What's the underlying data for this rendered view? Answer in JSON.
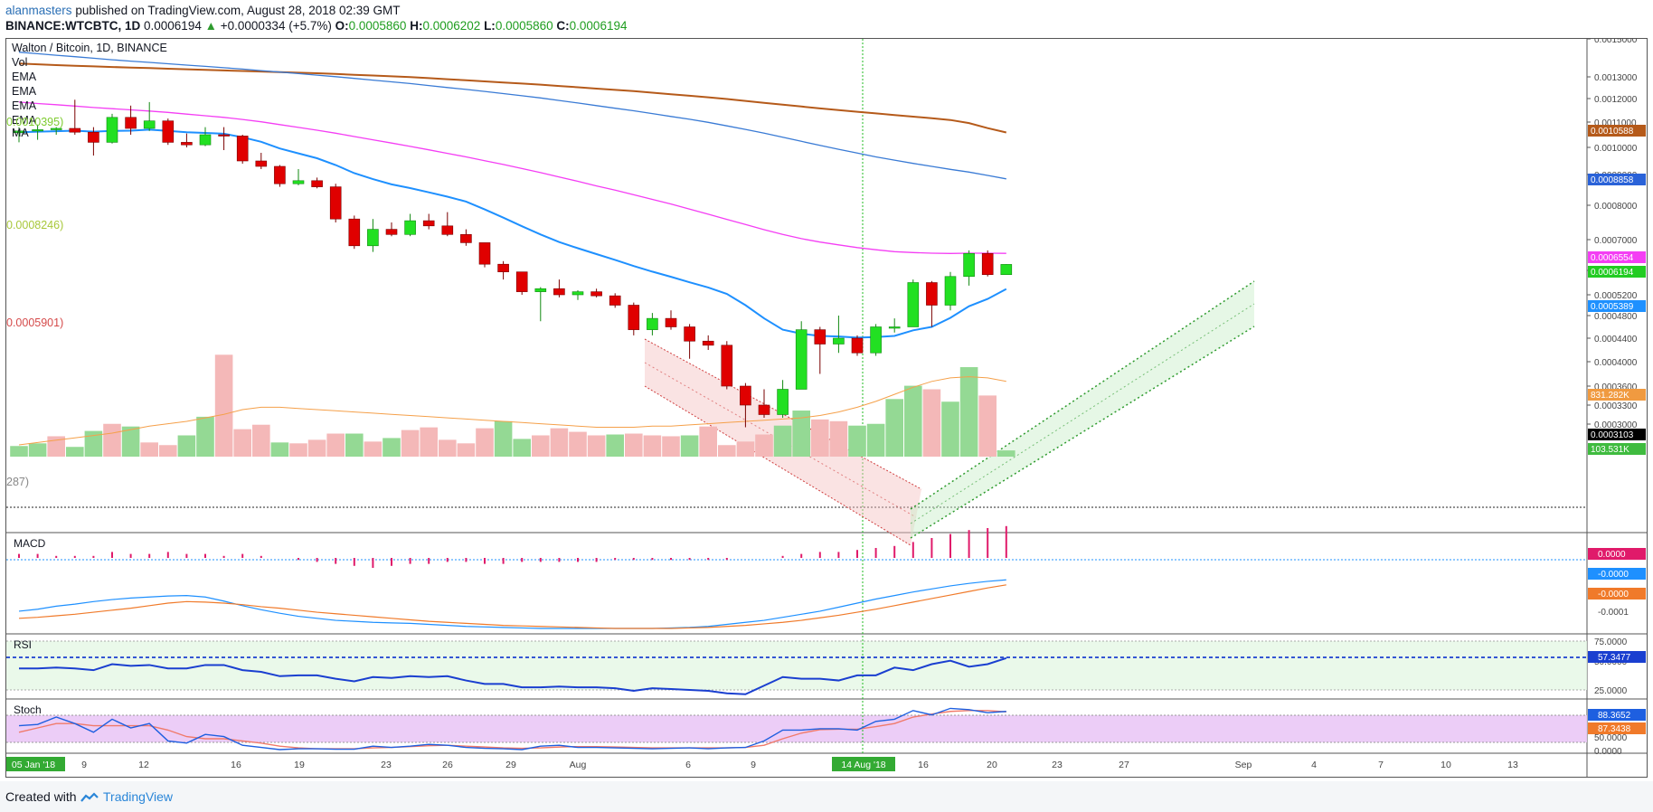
{
  "header": {
    "author": "alanmasters",
    "published_text": "published on TradingView.com, August 28, 2018 02:39 GMT",
    "symbol": "BINANCE:WTCBTC, 1D",
    "last": "0.0006194",
    "change": "+0.0000334 (+5.7%)",
    "o_label": "O:",
    "o_val": "0.0005860",
    "h_label": "H:",
    "h_val": "0.0006202",
    "l_label": "L:",
    "l_val": "0.0005860",
    "c_label": "C:",
    "c_val": "0.0006194"
  },
  "main_title": "Walton / Bitcoin, 1D, BINANCE",
  "legend": [
    "Vol",
    "EMA",
    "EMA",
    "EMA",
    "EMA",
    "MA"
  ],
  "left_cut_labels": [
    {
      "text": "0.0010395)",
      "color": "#7ecb2f"
    },
    {
      "text": "0.0008246)",
      "color": "#a8c83a"
    },
    {
      "text": "0.0005901)",
      "color": "#d54a4a"
    },
    {
      "text": "287)",
      "color": "#888888"
    }
  ],
  "pane_labels": {
    "macd": "MACD",
    "rsi": "RSI",
    "stoch": "Stoch"
  },
  "footer": {
    "created_with": "Created with",
    "brand": "TradingView"
  },
  "colors": {
    "up": "#22e022",
    "down": "#e00000",
    "ema_fast": "#1e90ff",
    "ema_magenta": "#f43ef4",
    "ema_blue": "#3a7bd5",
    "ema_brown": "#b55a1a",
    "vol_up": "#94d994",
    "vol_down": "#f4b8b8"
  },
  "chart_data": {
    "type": "candlestick",
    "title": "Walton / Bitcoin, 1D, BINANCE",
    "y_axis_ticks": [
      "0.0015000",
      "0.0013000",
      "0.0012000",
      "0.0011000",
      "0.0010000",
      "0.0009000",
      "0.0008000",
      "0.0007000",
      "0.0006000",
      "0.0005200",
      "0.0004800",
      "0.0004400",
      "0.0004000",
      "0.0003600",
      "0.0003300",
      "0.0003000"
    ],
    "price_labels": [
      {
        "text": "0.0010588",
        "bg": "#b55a1a",
        "fg": "#ffffff"
      },
      {
        "text": "0.0008858",
        "bg": "#2a62d8",
        "fg": "#ffffff"
      },
      {
        "text": "0.0006554",
        "bg": "#f43ef4",
        "fg": "#ffffff"
      },
      {
        "text": "0.0006194",
        "bg": "#22cc22",
        "fg": "#ffffff"
      },
      {
        "text": "0.0005389",
        "bg": "#1e90ff",
        "fg": "#ffffff"
      },
      {
        "text": "831.282K",
        "bg": "#f09a40",
        "fg": "#ffffff"
      },
      {
        "text": "0.0003103",
        "bg": "#000000",
        "fg": "#ffffff"
      },
      {
        "text": "103.531K",
        "bg": "#3fbb3f",
        "fg": "#ffffff"
      }
    ],
    "candles": [
      [
        0.001058,
        0.00108,
        0.00102,
        0.001065
      ],
      [
        0.001065,
        0.00109,
        0.00103,
        0.00107
      ],
      [
        0.00107,
        0.00108,
        0.00105,
        0.001075
      ],
      [
        0.001075,
        0.001195,
        0.00105,
        0.00106
      ],
      [
        0.00106,
        0.00108,
        0.00097,
        0.00102
      ],
      [
        0.00102,
        0.001135,
        0.001015,
        0.00112
      ],
      [
        0.00112,
        0.00117,
        0.00105,
        0.001075
      ],
      [
        0.001075,
        0.001185,
        0.001065,
        0.001105
      ],
      [
        0.001105,
        0.001115,
        0.00101,
        0.00102
      ],
      [
        0.00102,
        0.001055,
        0.001,
        0.00101
      ],
      [
        0.00101,
        0.00108,
        0.001005,
        0.00105
      ],
      [
        0.00105,
        0.00108,
        0.00099,
        0.001045
      ],
      [
        0.001045,
        0.00105,
        0.00094,
        0.00095
      ],
      [
        0.00095,
        0.00098,
        0.00092,
        0.00093
      ],
      [
        0.00093,
        0.000935,
        0.00086,
        0.00087
      ],
      [
        0.00087,
        0.00092,
        0.000865,
        0.00088
      ],
      [
        0.00088,
        0.00089,
        0.000855,
        0.00086
      ],
      [
        0.00086,
        0.00087,
        0.00075,
        0.00076
      ],
      [
        0.00076,
        0.00077,
        0.00067,
        0.00068
      ],
      [
        0.00068,
        0.00076,
        0.00066,
        0.00073
      ],
      [
        0.00073,
        0.00075,
        0.00071,
        0.000715
      ],
      [
        0.000715,
        0.000775,
        0.00071,
        0.000755
      ],
      [
        0.000755,
        0.000775,
        0.00073,
        0.00074
      ],
      [
        0.00074,
        0.00078,
        0.00071,
        0.000715
      ],
      [
        0.000715,
        0.00073,
        0.00068,
        0.00069
      ],
      [
        0.00069,
        0.00069,
        0.00061,
        0.00062
      ],
      [
        0.00062,
        0.00063,
        0.00057,
        0.000595
      ],
      [
        0.000595,
        0.000595,
        0.00052,
        0.00053
      ],
      [
        0.00053,
        0.000545,
        0.00047,
        0.00054
      ],
      [
        0.00054,
        0.00057,
        0.000515,
        0.00052
      ],
      [
        0.00052,
        0.000535,
        0.00051,
        0.00053
      ],
      [
        0.00053,
        0.00054,
        0.000515,
        0.000518
      ],
      [
        0.000518,
        0.000525,
        0.000495,
        0.0005
      ],
      [
        0.0005,
        0.000505,
        0.000445,
        0.000455
      ],
      [
        0.000455,
        0.000485,
        0.000445,
        0.000475
      ],
      [
        0.000475,
        0.00049,
        0.000455,
        0.00046
      ],
      [
        0.00046,
        0.000465,
        0.000405,
        0.000435
      ],
      [
        0.000435,
        0.000445,
        0.00042,
        0.000428
      ],
      [
        0.000428,
        0.000435,
        0.000355,
        0.00036
      ],
      [
        0.00036,
        0.000365,
        0.000295,
        0.00033
      ],
      [
        0.00033,
        0.000355,
        0.00031,
        0.000315
      ],
      [
        0.000315,
        0.00037,
        0.00031,
        0.000355
      ],
      [
        0.000355,
        0.00047,
        0.000355,
        0.000455
      ],
      [
        0.000455,
        0.00046,
        0.00038,
        0.00043
      ],
      [
        0.00043,
        0.00048,
        0.000415,
        0.00044
      ],
      [
        0.00044,
        0.000445,
        0.00041,
        0.000415
      ],
      [
        0.000415,
        0.000465,
        0.00041,
        0.00046
      ],
      [
        0.00046,
        0.000475,
        0.00045,
        0.00046
      ],
      [
        0.00046,
        0.00057,
        0.00046,
        0.00056
      ],
      [
        0.00056,
        0.000565,
        0.00046,
        0.0005
      ],
      [
        0.0005,
        0.000595,
        0.00049,
        0.00058
      ],
      [
        0.00058,
        0.000665,
        0.00055,
        0.000655
      ],
      [
        0.000655,
        0.000665,
        0.00058,
        0.000586
      ],
      [
        0.000586,
        0.0006202,
        0.000586,
        0.0006194
      ]
    ],
    "volume": [
      [
        120,
        1
      ],
      [
        150,
        1
      ],
      [
        230,
        0
      ],
      [
        110,
        1
      ],
      [
        290,
        1
      ],
      [
        370,
        0
      ],
      [
        340,
        1
      ],
      [
        160,
        0
      ],
      [
        130,
        0
      ],
      [
        240,
        1
      ],
      [
        450,
        1
      ],
      [
        1150,
        0
      ],
      [
        310,
        0
      ],
      [
        360,
        0
      ],
      [
        160,
        1
      ],
      [
        150,
        0
      ],
      [
        190,
        0
      ],
      [
        260,
        0
      ],
      [
        260,
        1
      ],
      [
        170,
        0
      ],
      [
        210,
        1
      ],
      [
        300,
        0
      ],
      [
        330,
        0
      ],
      [
        190,
        0
      ],
      [
        150,
        0
      ],
      [
        320,
        0
      ],
      [
        400,
        1
      ],
      [
        200,
        1
      ],
      [
        240,
        0
      ],
      [
        320,
        0
      ],
      [
        280,
        0
      ],
      [
        240,
        0
      ],
      [
        250,
        1
      ],
      [
        260,
        0
      ],
      [
        240,
        0
      ],
      [
        230,
        0
      ],
      [
        240,
        1
      ],
      [
        340,
        0
      ],
      [
        130,
        0
      ],
      [
        170,
        0
      ],
      [
        250,
        0
      ],
      [
        350,
        1
      ],
      [
        520,
        1
      ],
      [
        420,
        0
      ],
      [
        400,
        0
      ],
      [
        350,
        1
      ],
      [
        370,
        1
      ],
      [
        650,
        1
      ],
      [
        800,
        1
      ],
      [
        760,
        0
      ],
      [
        620,
        1
      ],
      [
        1010,
        1
      ],
      [
        690,
        0
      ],
      [
        70,
        1
      ]
    ],
    "volume_ma": [
      0.1,
      0.12,
      0.14,
      0.16,
      0.18,
      0.2,
      0.23,
      0.26,
      0.28,
      0.3,
      0.33,
      0.36,
      0.4,
      0.42,
      0.42,
      0.41,
      0.4,
      0.39,
      0.38,
      0.37,
      0.36,
      0.35,
      0.34,
      0.33,
      0.32,
      0.31,
      0.3,
      0.29,
      0.28,
      0.27,
      0.26,
      0.25,
      0.25,
      0.25,
      0.26,
      0.26,
      0.27,
      0.28,
      0.29,
      0.3,
      0.31,
      0.32,
      0.33,
      0.35,
      0.38,
      0.42,
      0.47,
      0.53,
      0.59,
      0.64,
      0.67,
      0.68,
      0.67,
      0.64
    ],
    "ema_fast": [
      0.00106,
      0.001062,
      0.001064,
      0.001066,
      0.001062,
      0.001065,
      0.001066,
      0.00107,
      0.001065,
      0.00106,
      0.001057,
      0.001054,
      0.00104,
      0.001022,
      0.000996,
      0.000978,
      0.00096,
      0.000935,
      0.000905,
      0.000885,
      0.000868,
      0.000856,
      0.000842,
      0.000828,
      0.000812,
      0.000788,
      0.000764,
      0.000739,
      0.000715,
      0.000692,
      0.000672,
      0.000653,
      0.000634,
      0.000614,
      0.000596,
      0.000579,
      0.000561,
      0.000544,
      0.000523,
      0.0005,
      0.000475,
      0.000455,
      0.000448,
      0.000444,
      0.000443,
      0.000441,
      0.000442,
      0.000444,
      0.000454,
      0.00046,
      0.000476,
      0.000498,
      0.000512,
      0.0005389
    ],
    "ema_magenta": [
      0.001185,
      0.001179,
      0.001174,
      0.001168,
      0.001162,
      0.001157,
      0.001152,
      0.001147,
      0.001141,
      0.001134,
      0.001127,
      0.00112,
      0.001111,
      0.001101,
      0.00109,
      0.001079,
      0.001068,
      0.001056,
      0.001043,
      0.00103,
      0.001017,
      0.001004,
      0.000991,
      0.000978,
      0.000965,
      0.000951,
      0.000937,
      0.000922,
      0.000907,
      0.000892,
      0.000878,
      0.000863,
      0.000849,
      0.000834,
      0.000819,
      0.000804,
      0.000789,
      0.000774,
      0.000759,
      0.000744,
      0.000729,
      0.000715,
      0.000703,
      0.000692,
      0.000683,
      0.000674,
      0.000667,
      0.000661,
      0.000658,
      0.000656,
      0.000655,
      0.000656,
      0.000656,
      0.0006554
    ],
    "ema_blue": [
      0.00143,
      0.001422,
      0.001414,
      0.001406,
      0.001398,
      0.00139,
      0.001383,
      0.001376,
      0.001369,
      0.001362,
      0.001355,
      0.001348,
      0.001341,
      0.001333,
      0.001325,
      0.001317,
      0.001309,
      0.001301,
      0.001293,
      0.001285,
      0.001277,
      0.001269,
      0.00126,
      0.001251,
      0.001242,
      0.001233,
      0.001223,
      0.001213,
      0.001203,
      0.001192,
      0.001181,
      0.00117,
      0.001159,
      0.001148,
      0.001136,
      0.001124,
      0.001112,
      0.001099,
      0.001085,
      0.001071,
      0.001056,
      0.00104,
      0.001024,
      0.001008,
      0.000993,
      0.000979,
      0.000965,
      0.000953,
      0.000941,
      0.00093,
      0.000919,
      0.000909,
      0.000897,
      0.0008858
    ],
    "ema_brown": [
      0.00137,
      0.001366,
      0.001362,
      0.001358,
      0.001355,
      0.001352,
      0.001349,
      0.001346,
      0.001343,
      0.00134,
      0.001337,
      0.001334,
      0.001331,
      0.001328,
      0.001325,
      0.001322,
      0.001319,
      0.001315,
      0.001311,
      0.001307,
      0.001303,
      0.001299,
      0.001294,
      0.001289,
      0.001284,
      0.001279,
      0.001274,
      0.001269,
      0.001264,
      0.001258,
      0.001252,
      0.001246,
      0.00124,
      0.001234,
      0.001227,
      0.00122,
      0.001213,
      0.001206,
      0.001198,
      0.00119,
      0.001182,
      0.001174,
      0.001166,
      0.001158,
      0.001151,
      0.001144,
      0.001137,
      0.00113,
      0.001123,
      0.001116,
      0.001109,
      0.001096,
      0.001076,
      0.0010588
    ],
    "macd_pane": {
      "ticks": [
        "0.0000",
        "-0.0000",
        "-0.0000",
        "-0.0001"
      ],
      "histogram": [
        2,
        2,
        1,
        1,
        1,
        3,
        2,
        2,
        3,
        2,
        2,
        1,
        2,
        1,
        0,
        -1,
        -2,
        -3,
        -4,
        -5,
        -4,
        -3,
        -3,
        -2,
        -2,
        -3,
        -3,
        -2,
        -2,
        -2,
        -2,
        -2,
        -1,
        -1,
        -1,
        -1,
        -1,
        -1,
        -1,
        0,
        0,
        1,
        2,
        3,
        3,
        4,
        5,
        6,
        8,
        10,
        12,
        14,
        15,
        16
      ],
      "macd": [
        -0.66,
        -0.62,
        -0.56,
        -0.52,
        -0.47,
        -0.43,
        -0.4,
        -0.38,
        -0.36,
        -0.35,
        -0.38,
        -0.46,
        -0.55,
        -0.63,
        -0.7,
        -0.76,
        -0.8,
        -0.84,
        -0.86,
        -0.88,
        -0.89,
        -0.9,
        -0.92,
        -0.94,
        -0.96,
        -0.97,
        -0.98,
        -0.99,
        -1.0,
        -1.0,
        -1.0,
        -1.0,
        -1.0,
        -1.0,
        -1.0,
        -0.99,
        -0.98,
        -0.96,
        -0.92,
        -0.88,
        -0.84,
        -0.78,
        -0.72,
        -0.66,
        -0.58,
        -0.5,
        -0.42,
        -0.35,
        -0.28,
        -0.22,
        -0.16,
        -0.11,
        -0.07,
        -0.04
      ],
      "signal": [
        -0.8,
        -0.78,
        -0.75,
        -0.72,
        -0.68,
        -0.64,
        -0.6,
        -0.55,
        -0.5,
        -0.47,
        -0.48,
        -0.5,
        -0.53,
        -0.57,
        -0.6,
        -0.64,
        -0.68,
        -0.71,
        -0.74,
        -0.77,
        -0.8,
        -0.83,
        -0.86,
        -0.88,
        -0.9,
        -0.92,
        -0.94,
        -0.95,
        -0.96,
        -0.97,
        -0.98,
        -0.99,
        -1.0,
        -1.0,
        -1.0,
        -1.0,
        -0.99,
        -0.98,
        -0.96,
        -0.94,
        -0.91,
        -0.88,
        -0.84,
        -0.79,
        -0.74,
        -0.68,
        -0.62,
        -0.55,
        -0.48,
        -0.41,
        -0.34,
        -0.27,
        -0.2,
        -0.14
      ],
      "label_macd": "-0.0000",
      "label_signal": "-0.0000",
      "label_hist": "0.0000"
    },
    "rsi_pane": {
      "ticks": [
        "75.0000",
        "50.0000",
        "25.0000"
      ],
      "label_value": "57.3477",
      "values": [
        45,
        45,
        46,
        45,
        43,
        50,
        48,
        49,
        45,
        45,
        49,
        49,
        43,
        41,
        36,
        37,
        37,
        33,
        30,
        35,
        34,
        36,
        35,
        36,
        31,
        27,
        27,
        23,
        23,
        24,
        23,
        23,
        22,
        19,
        22,
        21,
        20,
        19,
        16,
        15,
        25,
        35,
        33,
        33,
        31,
        37,
        37,
        46,
        43,
        50,
        54,
        47,
        50,
        57
      ]
    },
    "stoch_pane": {
      "ticks": [
        "50.0000",
        "0.0000"
      ],
      "label_k": "88.3652",
      "label_d": "87.3438",
      "k": [
        55,
        58,
        75,
        60,
        40,
        70,
        50,
        60,
        20,
        15,
        35,
        30,
        10,
        5,
        0,
        2,
        2,
        1,
        1,
        8,
        5,
        8,
        12,
        10,
        5,
        3,
        2,
        0,
        8,
        10,
        5,
        5,
        4,
        3,
        2,
        3,
        4,
        2,
        4,
        5,
        20,
        45,
        45,
        48,
        48,
        45,
        65,
        70,
        90,
        80,
        95,
        92,
        85,
        88
      ],
      "d": [
        40,
        50,
        60,
        60,
        55,
        55,
        55,
        55,
        45,
        30,
        25,
        25,
        20,
        15,
        8,
        4,
        2,
        2,
        2,
        4,
        5,
        7,
        9,
        10,
        8,
        6,
        4,
        3,
        4,
        6,
        7,
        7,
        6,
        5,
        4,
        4,
        4,
        4,
        4,
        5,
        10,
        25,
        38,
        46,
        47,
        47,
        53,
        60,
        75,
        82,
        88,
        90,
        90,
        87
      ]
    },
    "x_axis_ticks": [
      "05 Jan '18",
      "9",
      "12",
      "16",
      "19",
      "23",
      "26",
      "29",
      "Aug",
      "6",
      "9",
      "14 Aug '18",
      "16",
      "20",
      "23",
      "27",
      "Sep",
      "4",
      "7",
      "10",
      "13"
    ]
  }
}
